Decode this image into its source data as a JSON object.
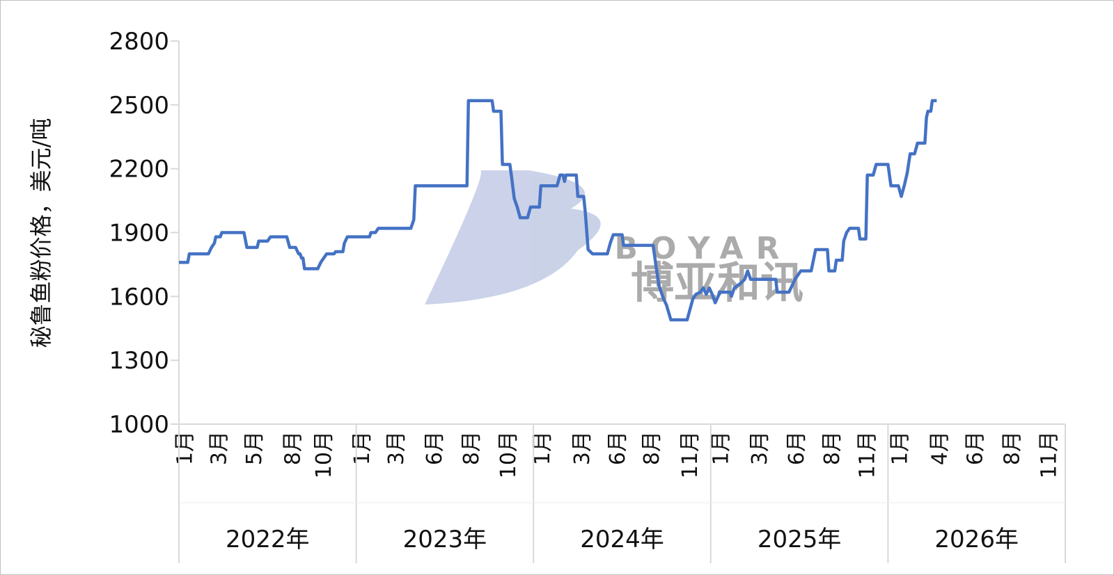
{
  "chart_data": {
    "type": "line",
    "y_label": "秘鲁鱼粉价格，美元/吨",
    "watermark": {
      "brand": "BOYAR",
      "name": "博亚和讯"
    },
    "xlim": [
      0,
      60
    ],
    "ylim": [
      1000,
      2800
    ],
    "yticks": [
      1000,
      1300,
      1600,
      1900,
      2200,
      2500,
      2800
    ],
    "xticks": [
      {
        "value": 0.4,
        "label": "1月"
      },
      {
        "value": 2.7,
        "label": "3月"
      },
      {
        "value": 5.1,
        "label": "5月"
      },
      {
        "value": 7.7,
        "label": "8月"
      },
      {
        "value": 9.8,
        "label": "10月"
      },
      {
        "value": 12.4,
        "label": "1月"
      },
      {
        "value": 14.7,
        "label": "3月"
      },
      {
        "value": 17.3,
        "label": "6月"
      },
      {
        "value": 19.8,
        "label": "8月"
      },
      {
        "value": 22.3,
        "label": "10月"
      },
      {
        "value": 24.6,
        "label": "1月"
      },
      {
        "value": 27.3,
        "label": "3月"
      },
      {
        "value": 29.7,
        "label": "6月"
      },
      {
        "value": 32.0,
        "label": "8月"
      },
      {
        "value": 34.6,
        "label": "11月"
      },
      {
        "value": 36.7,
        "label": "1月"
      },
      {
        "value": 39.3,
        "label": "3月"
      },
      {
        "value": 41.8,
        "label": "6月"
      },
      {
        "value": 44.2,
        "label": "8月"
      },
      {
        "value": 46.6,
        "label": "11月"
      },
      {
        "value": 48.8,
        "label": "1月"
      },
      {
        "value": 51.5,
        "label": "4月"
      },
      {
        "value": 53.9,
        "label": "6月"
      },
      {
        "value": 56.4,
        "label": "8月"
      },
      {
        "value": 58.9,
        "label": "11月"
      }
    ],
    "xgroups": [
      {
        "label": "2022年",
        "range": [
          0,
          12
        ]
      },
      {
        "label": "2023年",
        "range": [
          12,
          24
        ]
      },
      {
        "label": "2024年",
        "range": [
          24,
          36
        ]
      },
      {
        "label": "2025年",
        "range": [
          36,
          48
        ]
      },
      {
        "label": "2026年",
        "range": [
          48,
          60
        ]
      }
    ],
    "series": [
      {
        "color": "#4472c4",
        "x": [
          0.0,
          0.6,
          0.7,
          2.0,
          2.2,
          2.4,
          2.5,
          2.8,
          2.9,
          4.4,
          4.6,
          5.3,
          5.4,
          6.0,
          6.2,
          7.3,
          7.5,
          7.9,
          8.1,
          8.2,
          8.3,
          8.4,
          8.5,
          9.4,
          9.6,
          9.8,
          10.0,
          10.5,
          10.6,
          11.1,
          11.2,
          11.4,
          12.9,
          13.0,
          13.3,
          13.5,
          15.7,
          15.9,
          16.0,
          19.5,
          19.6,
          21.2,
          21.3,
          21.8,
          21.9,
          22.4,
          22.5,
          22.7,
          22.9,
          23.1,
          23.6,
          23.8,
          24.4,
          24.5,
          25.6,
          25.8,
          26.0,
          26.1,
          26.2,
          26.9,
          27.0,
          27.4,
          27.5,
          27.7,
          28.0,
          29.0,
          29.2,
          29.4,
          30.0,
          30.1,
          32.1,
          32.3,
          32.5,
          32.8,
          33.0,
          33.3,
          34.4,
          34.6,
          34.8,
          35.0,
          35.3,
          35.5,
          35.7,
          35.9,
          36.1,
          36.3,
          36.5,
          36.6,
          37.3,
          37.4,
          37.6,
          38.0,
          38.3,
          38.5,
          38.7,
          40.4,
          40.5,
          41.3,
          41.5,
          41.7,
          42.1,
          42.8,
          43.1,
          43.9,
          44.0,
          44.4,
          44.5,
          44.9,
          45.0,
          45.2,
          45.4,
          46.0,
          46.1,
          46.5,
          46.6,
          47.0,
          47.2,
          48.0,
          48.2,
          48.7,
          48.9,
          49.1,
          49.3,
          49.5,
          49.8,
          50.0,
          50.5,
          50.6,
          50.7,
          50.9,
          51.0,
          51.3
        ],
        "values": [
          1760,
          1760,
          1800,
          1800,
          1830,
          1850,
          1880,
          1880,
          1900,
          1900,
          1830,
          1830,
          1860,
          1860,
          1880,
          1880,
          1830,
          1830,
          1800,
          1800,
          1780,
          1780,
          1730,
          1730,
          1760,
          1780,
          1800,
          1800,
          1810,
          1810,
          1850,
          1880,
          1880,
          1900,
          1900,
          1920,
          1920,
          1960,
          2120,
          2120,
          2520,
          2520,
          2470,
          2470,
          2220,
          2220,
          2170,
          2060,
          2020,
          1970,
          1970,
          2020,
          2020,
          2120,
          2120,
          2170,
          2170,
          2140,
          2170,
          2170,
          2070,
          2070,
          2000,
          1820,
          1800,
          1800,
          1850,
          1890,
          1890,
          1840,
          1840,
          1740,
          1650,
          1590,
          1560,
          1490,
          1490,
          1540,
          1590,
          1610,
          1620,
          1640,
          1610,
          1640,
          1610,
          1570,
          1600,
          1620,
          1620,
          1600,
          1640,
          1660,
          1680,
          1720,
          1680,
          1680,
          1620,
          1620,
          1650,
          1680,
          1720,
          1720,
          1820,
          1820,
          1720,
          1720,
          1770,
          1770,
          1860,
          1900,
          1920,
          1920,
          1870,
          1870,
          2170,
          2170,
          2220,
          2220,
          2120,
          2120,
          2070,
          2120,
          2180,
          2270,
          2270,
          2320,
          2320,
          2440,
          2470,
          2470,
          2520,
          2520
        ]
      }
    ]
  }
}
